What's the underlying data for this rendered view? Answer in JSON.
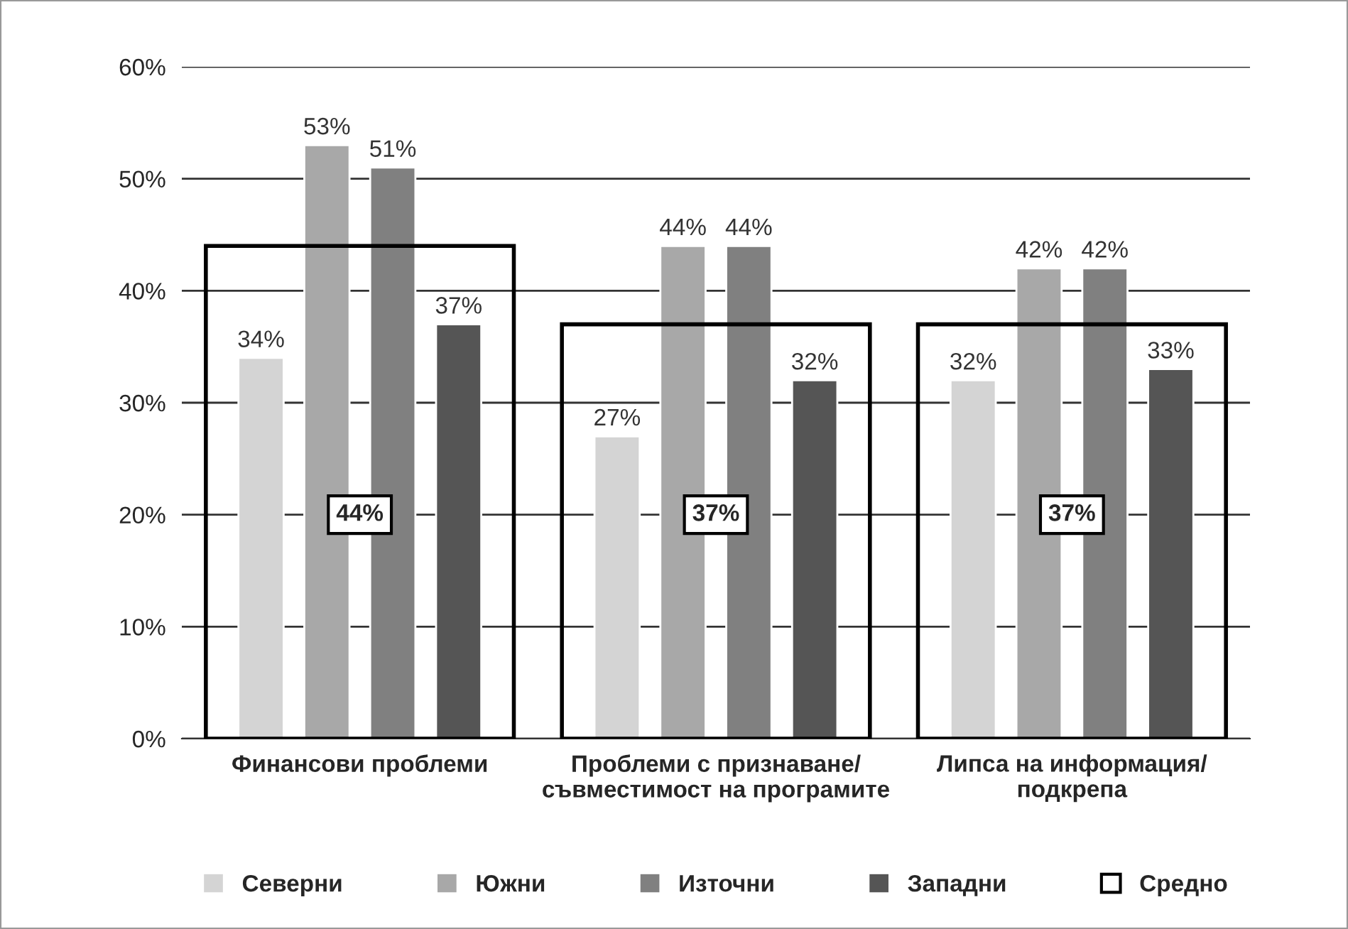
{
  "chart_data": {
    "type": "bar",
    "categories": [
      "Финансови проблеми",
      "Проблеми с признаване/\nсъвместимост на програмите",
      "Липса на информация/\nподкрепа"
    ],
    "series": [
      {
        "name": "Северни",
        "color": "#d4d4d4",
        "values": [
          34,
          27,
          32
        ],
        "value_labels": [
          "34%",
          "27%",
          "32%"
        ]
      },
      {
        "name": "Южни",
        "color": "#a8a8a8",
        "values": [
          53,
          44,
          42
        ],
        "value_labels": [
          "53%",
          "44%",
          "42%"
        ]
      },
      {
        "name": "Източни",
        "color": "#808080",
        "values": [
          51,
          44,
          42
        ],
        "value_labels": [
          "51%",
          "44%",
          "42%"
        ]
      },
      {
        "name": "Западни",
        "color": "#555555",
        "values": [
          37,
          32,
          33
        ],
        "value_labels": [
          "37%",
          "32%",
          "33%"
        ]
      },
      {
        "name": "Средно",
        "type": "bar",
        "line_style": "solid",
        "color": "#000000",
        "values": [
          44,
          37,
          37
        ],
        "value_labels": [
          "44%",
          "37%",
          "37%"
        ]
      }
    ],
    "ylim": [
      0,
      60
    ],
    "yticks": [
      {
        "value": 0,
        "label": "0%"
      },
      {
        "value": 10,
        "label": "10%"
      },
      {
        "value": 20,
        "label": "20%"
      },
      {
        "value": 30,
        "label": "30%"
      },
      {
        "value": 40,
        "label": "40%"
      },
      {
        "value": 50,
        "label": "50%"
      },
      {
        "value": 60,
        "label": "60%"
      }
    ],
    "grid": "y",
    "legend": "bottom"
  }
}
